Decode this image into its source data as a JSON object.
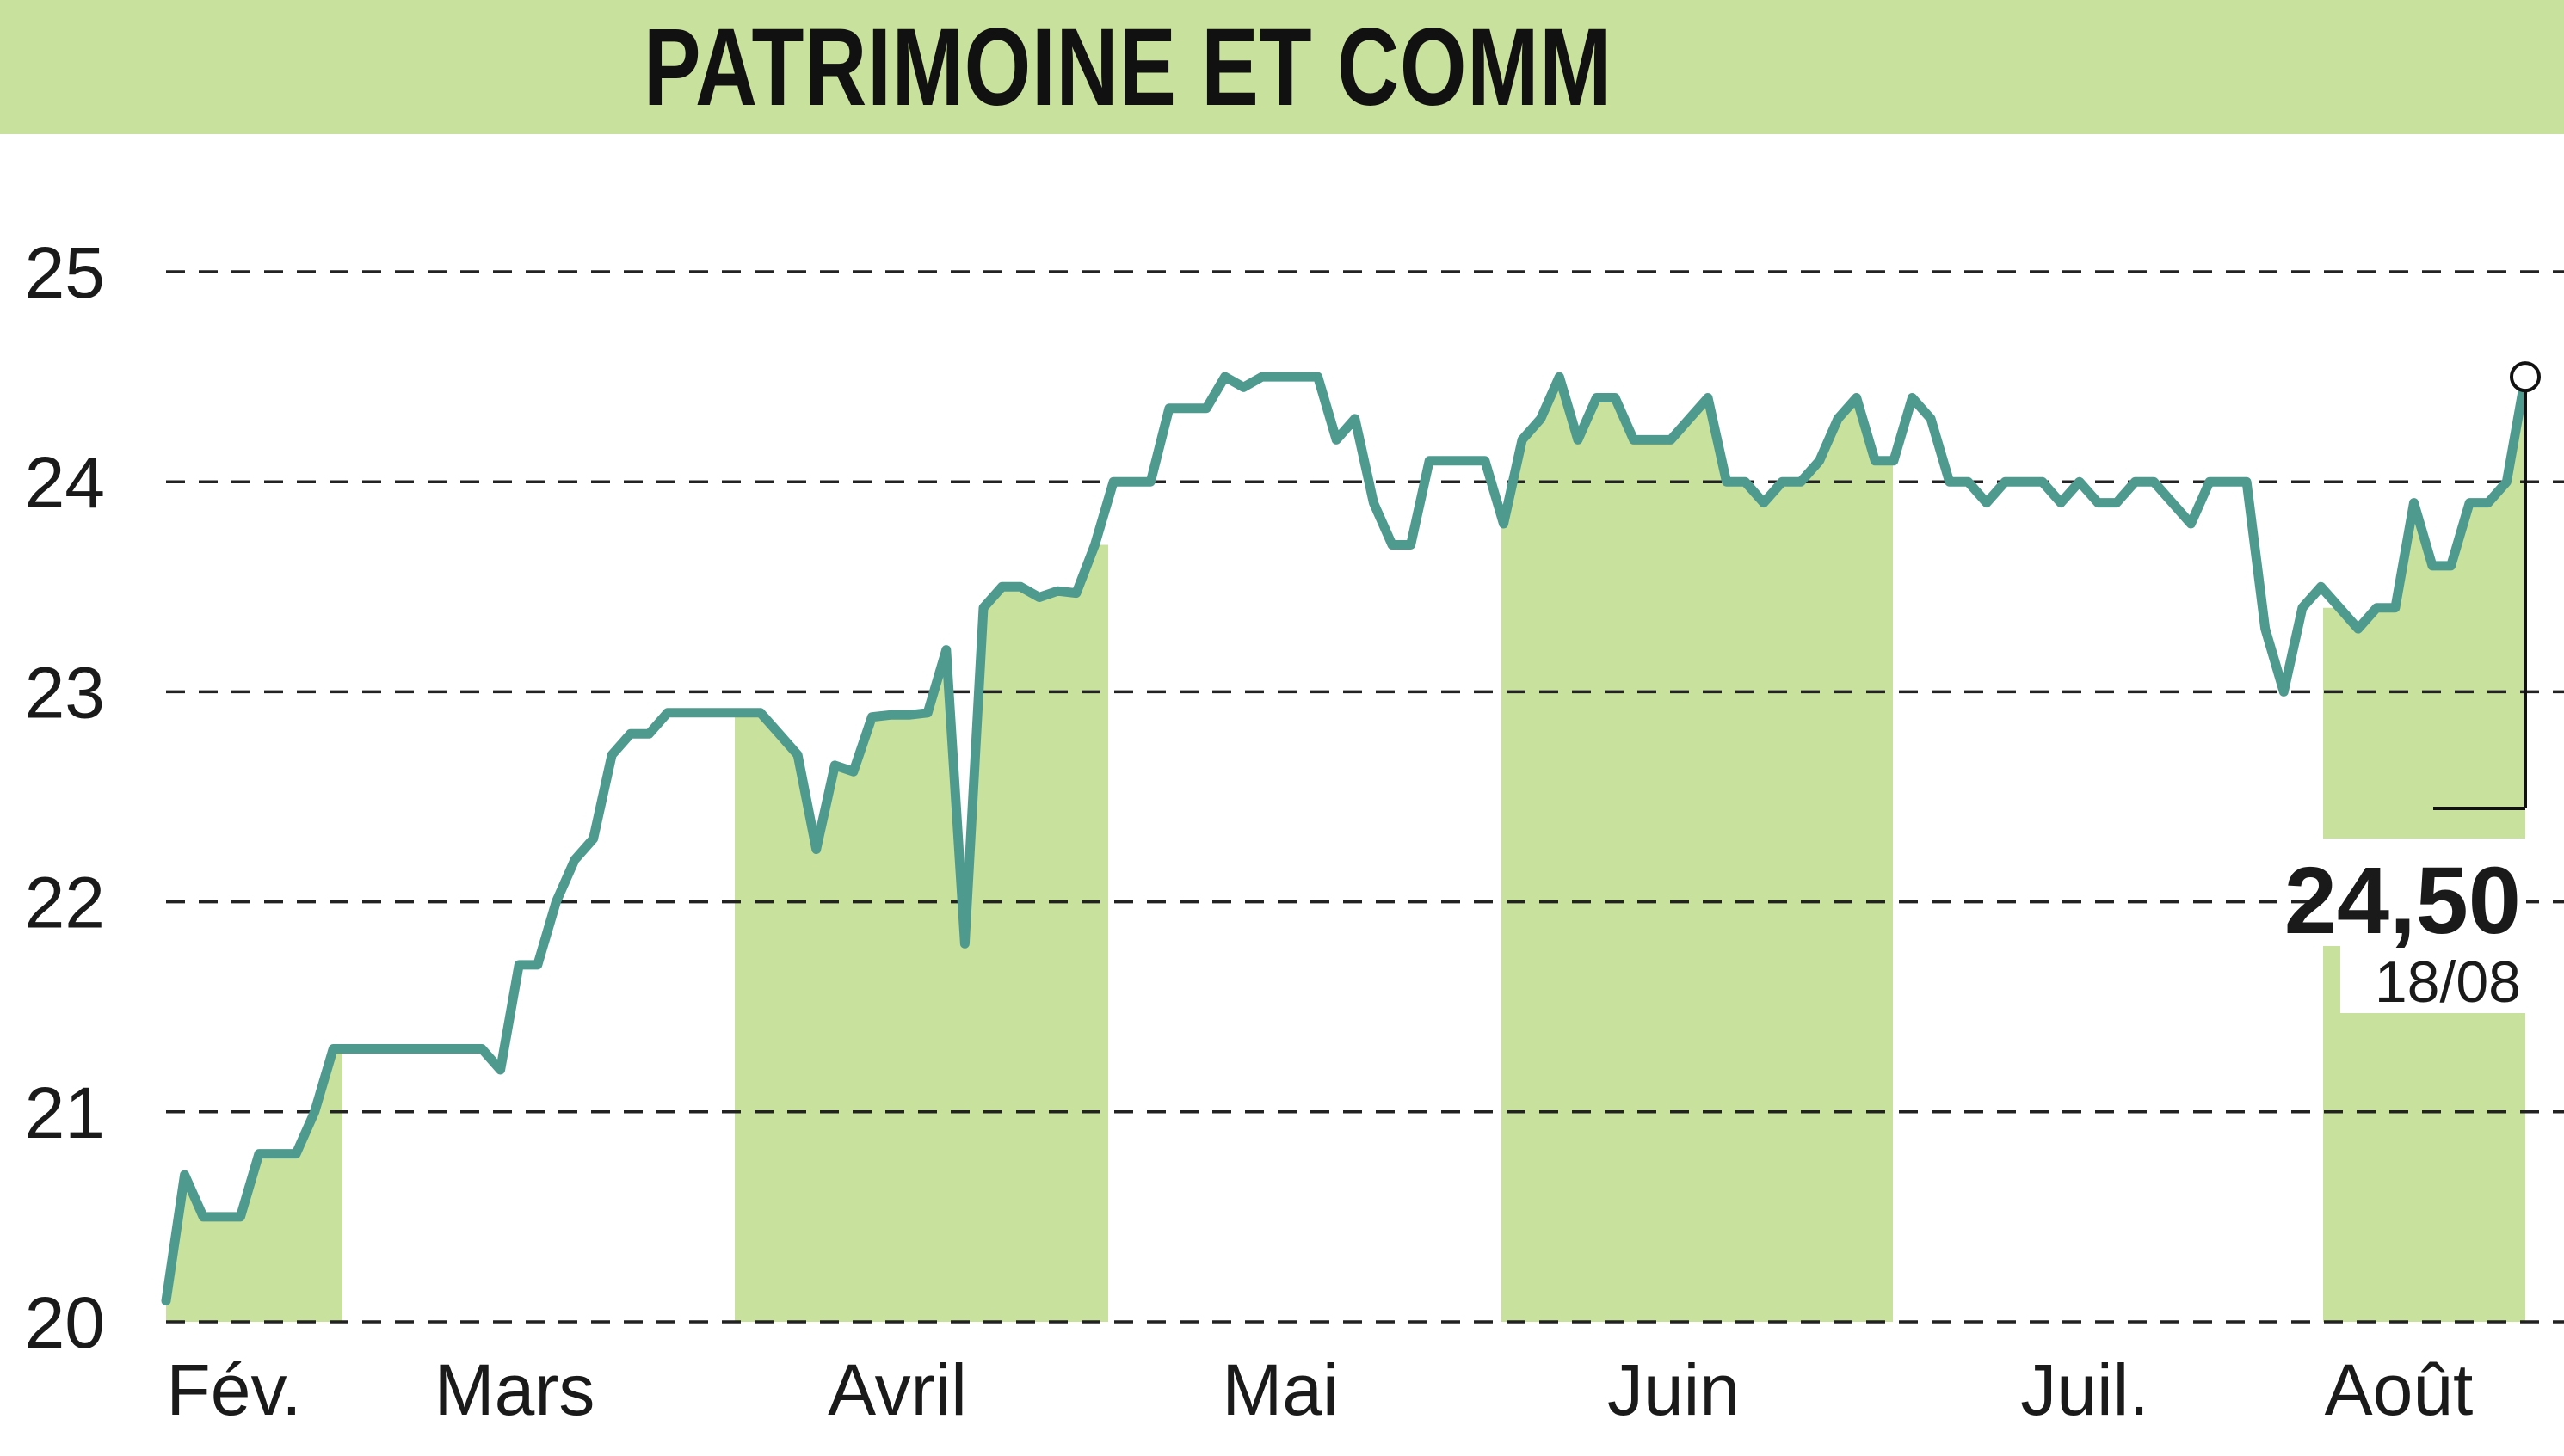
{
  "title": "PATRIMOINE ET COMM",
  "colors": {
    "band": "#c8e19d",
    "line": "#4f9a8e",
    "grid": "#222222",
    "text": "#1a1a1a"
  },
  "chart_data": {
    "type": "line",
    "title": "PATRIMOINE ET COMM",
    "ylim": [
      20,
      25
    ],
    "yticks": [
      20,
      21,
      22,
      23,
      24,
      25
    ],
    "grid": "horizontal dashed",
    "months": [
      "Fév.",
      "Mars",
      "Avril",
      "Mai",
      "Juin",
      "Juil.",
      "Août"
    ],
    "last_value": "24,50",
    "last_date": "18/08",
    "series": [
      {
        "values": [
          20.1,
          20.7,
          20.5,
          20.5,
          20.5,
          20.8,
          20.8,
          20.8,
          21.0,
          21.3,
          21.3,
          21.3,
          21.3,
          21.3,
          21.3,
          21.3,
          21.3,
          21.3,
          21.2,
          21.7,
          21.7,
          22.0,
          22.2,
          22.3,
          22.7,
          22.8,
          22.8,
          22.9,
          22.9,
          22.9,
          22.9,
          22.9,
          22.9,
          22.8,
          22.7,
          22.25,
          22.65,
          22.62,
          22.88,
          22.89,
          22.89,
          22.9,
          23.2,
          21.8,
          23.4,
          23.5,
          23.5,
          23.45,
          23.48,
          23.47,
          23.7,
          24.0,
          24.0,
          24.0,
          24.35,
          24.35,
          24.35,
          24.5,
          24.45,
          24.5,
          24.5,
          24.5,
          24.5,
          24.2,
          24.3,
          23.9,
          23.7,
          23.7,
          24.1,
          24.1,
          24.1,
          24.1,
          23.8,
          24.2,
          24.3,
          24.5,
          24.2,
          24.4,
          24.4,
          24.2,
          24.2,
          24.2,
          24.3,
          24.4,
          24.0,
          24.0,
          23.9,
          24.0,
          24.0,
          24.1,
          24.3,
          24.4,
          24.1,
          24.1,
          24.4,
          24.3,
          24.0,
          24.0,
          23.9,
          24.0,
          24.0,
          24.0,
          23.9,
          24.0,
          23.9,
          23.9,
          24.0,
          24.0,
          23.9,
          23.8,
          24.0,
          24.0,
          24.0,
          23.3,
          23.0,
          23.4,
          23.5,
          23.4,
          23.3,
          23.4,
          23.4,
          23.9,
          23.6,
          23.6,
          23.9,
          23.9,
          24.0,
          24.5
        ]
      }
    ]
  }
}
